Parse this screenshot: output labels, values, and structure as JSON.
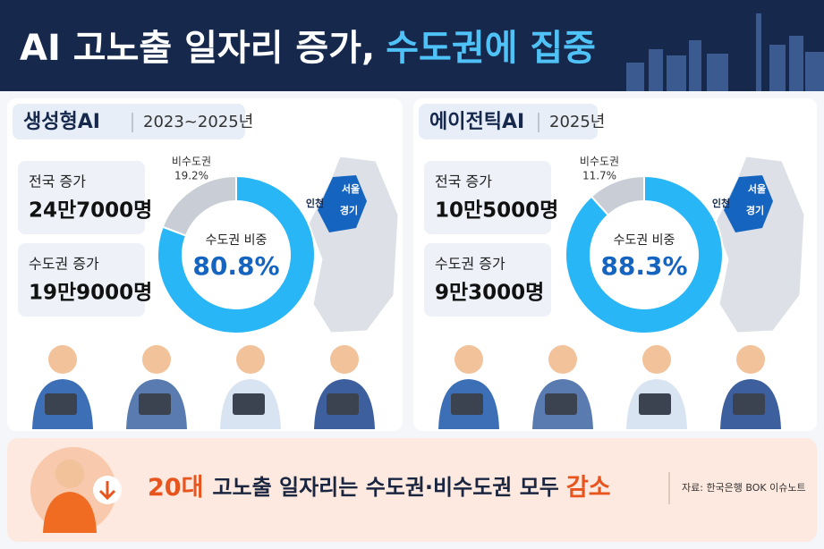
{
  "header": {
    "title_main": "AI 고노출 일자리 증가,",
    "title_highlight": "수도권에 집중"
  },
  "panels": [
    {
      "label": "생성형AI",
      "period": "2023~2025년",
      "national_label": "전국 증가",
      "national_value": "24만7000명",
      "metro_label": "수도권 증가",
      "metro_value": "19만9000명",
      "map_labels": [
        "서울",
        "인천",
        "경기"
      ]
    },
    {
      "label": "에이전틱AI",
      "period": "2025년",
      "national_label": "전국 증가",
      "national_value": "10만5000명",
      "metro_label": "수도권 증가",
      "metro_value": "9만3000명",
      "map_labels": [
        "서울",
        "인천",
        "경기"
      ]
    }
  ],
  "chart_data": [
    {
      "type": "pie",
      "center_label": "수도권 비중",
      "categories": [
        null,
        "비수도권"
      ],
      "values": [
        80.8,
        19.2
      ],
      "value_labels": [
        "80.8%",
        "19.2%"
      ],
      "colors": [
        "#29b6f6",
        "#c9ced6"
      ]
    },
    {
      "type": "pie",
      "center_label": "수도권 비중",
      "categories": [
        null,
        "비수도권"
      ],
      "values": [
        88.3,
        11.7
      ],
      "value_labels": [
        "88.3%",
        "11.7%"
      ],
      "colors": [
        "#29b6f6",
        "#c9ced6"
      ]
    }
  ],
  "footer": {
    "highlight_age": "20대",
    "message": "고노출 일자리는 수도권·비수도권 모두",
    "highlight_change": "감소",
    "source": "자료: 한국은행 BOK 이슈노트"
  }
}
